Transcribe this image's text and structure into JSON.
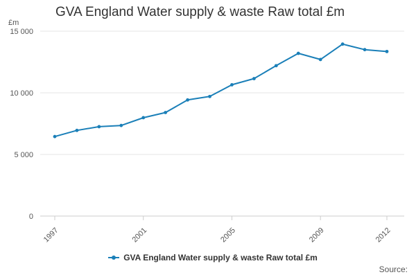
{
  "chart_data": {
    "type": "line",
    "title": "GVA England Water supply & waste Raw total £m",
    "ylabel": "£m",
    "xlabel": "",
    "ylim": [
      0,
      15000
    ],
    "yticks": [
      0,
      5000,
      10000,
      15000
    ],
    "ytick_labels": [
      "0",
      "5 000",
      "10 000",
      "15 000"
    ],
    "xticks": [
      1997,
      2001,
      2005,
      2009,
      2012
    ],
    "xtick_labels": [
      "1997",
      "2001",
      "2005",
      "2009",
      "2012"
    ],
    "x": [
      1997,
      1998,
      1999,
      2000,
      2001,
      2002,
      2003,
      2004,
      2005,
      2006,
      2007,
      2008,
      2009,
      2010,
      2011,
      2012
    ],
    "series": [
      {
        "name": "GVA England Water supply & waste Raw total £m",
        "color": "#1a7fb8",
        "values": [
          6450,
          6950,
          7250,
          7350,
          7980,
          8400,
          9420,
          9700,
          10650,
          11150,
          12200,
          13200,
          12700,
          13950,
          13500,
          13350
        ]
      }
    ],
    "grid": true,
    "legend_position": "bottom",
    "source_label": "Source:"
  }
}
